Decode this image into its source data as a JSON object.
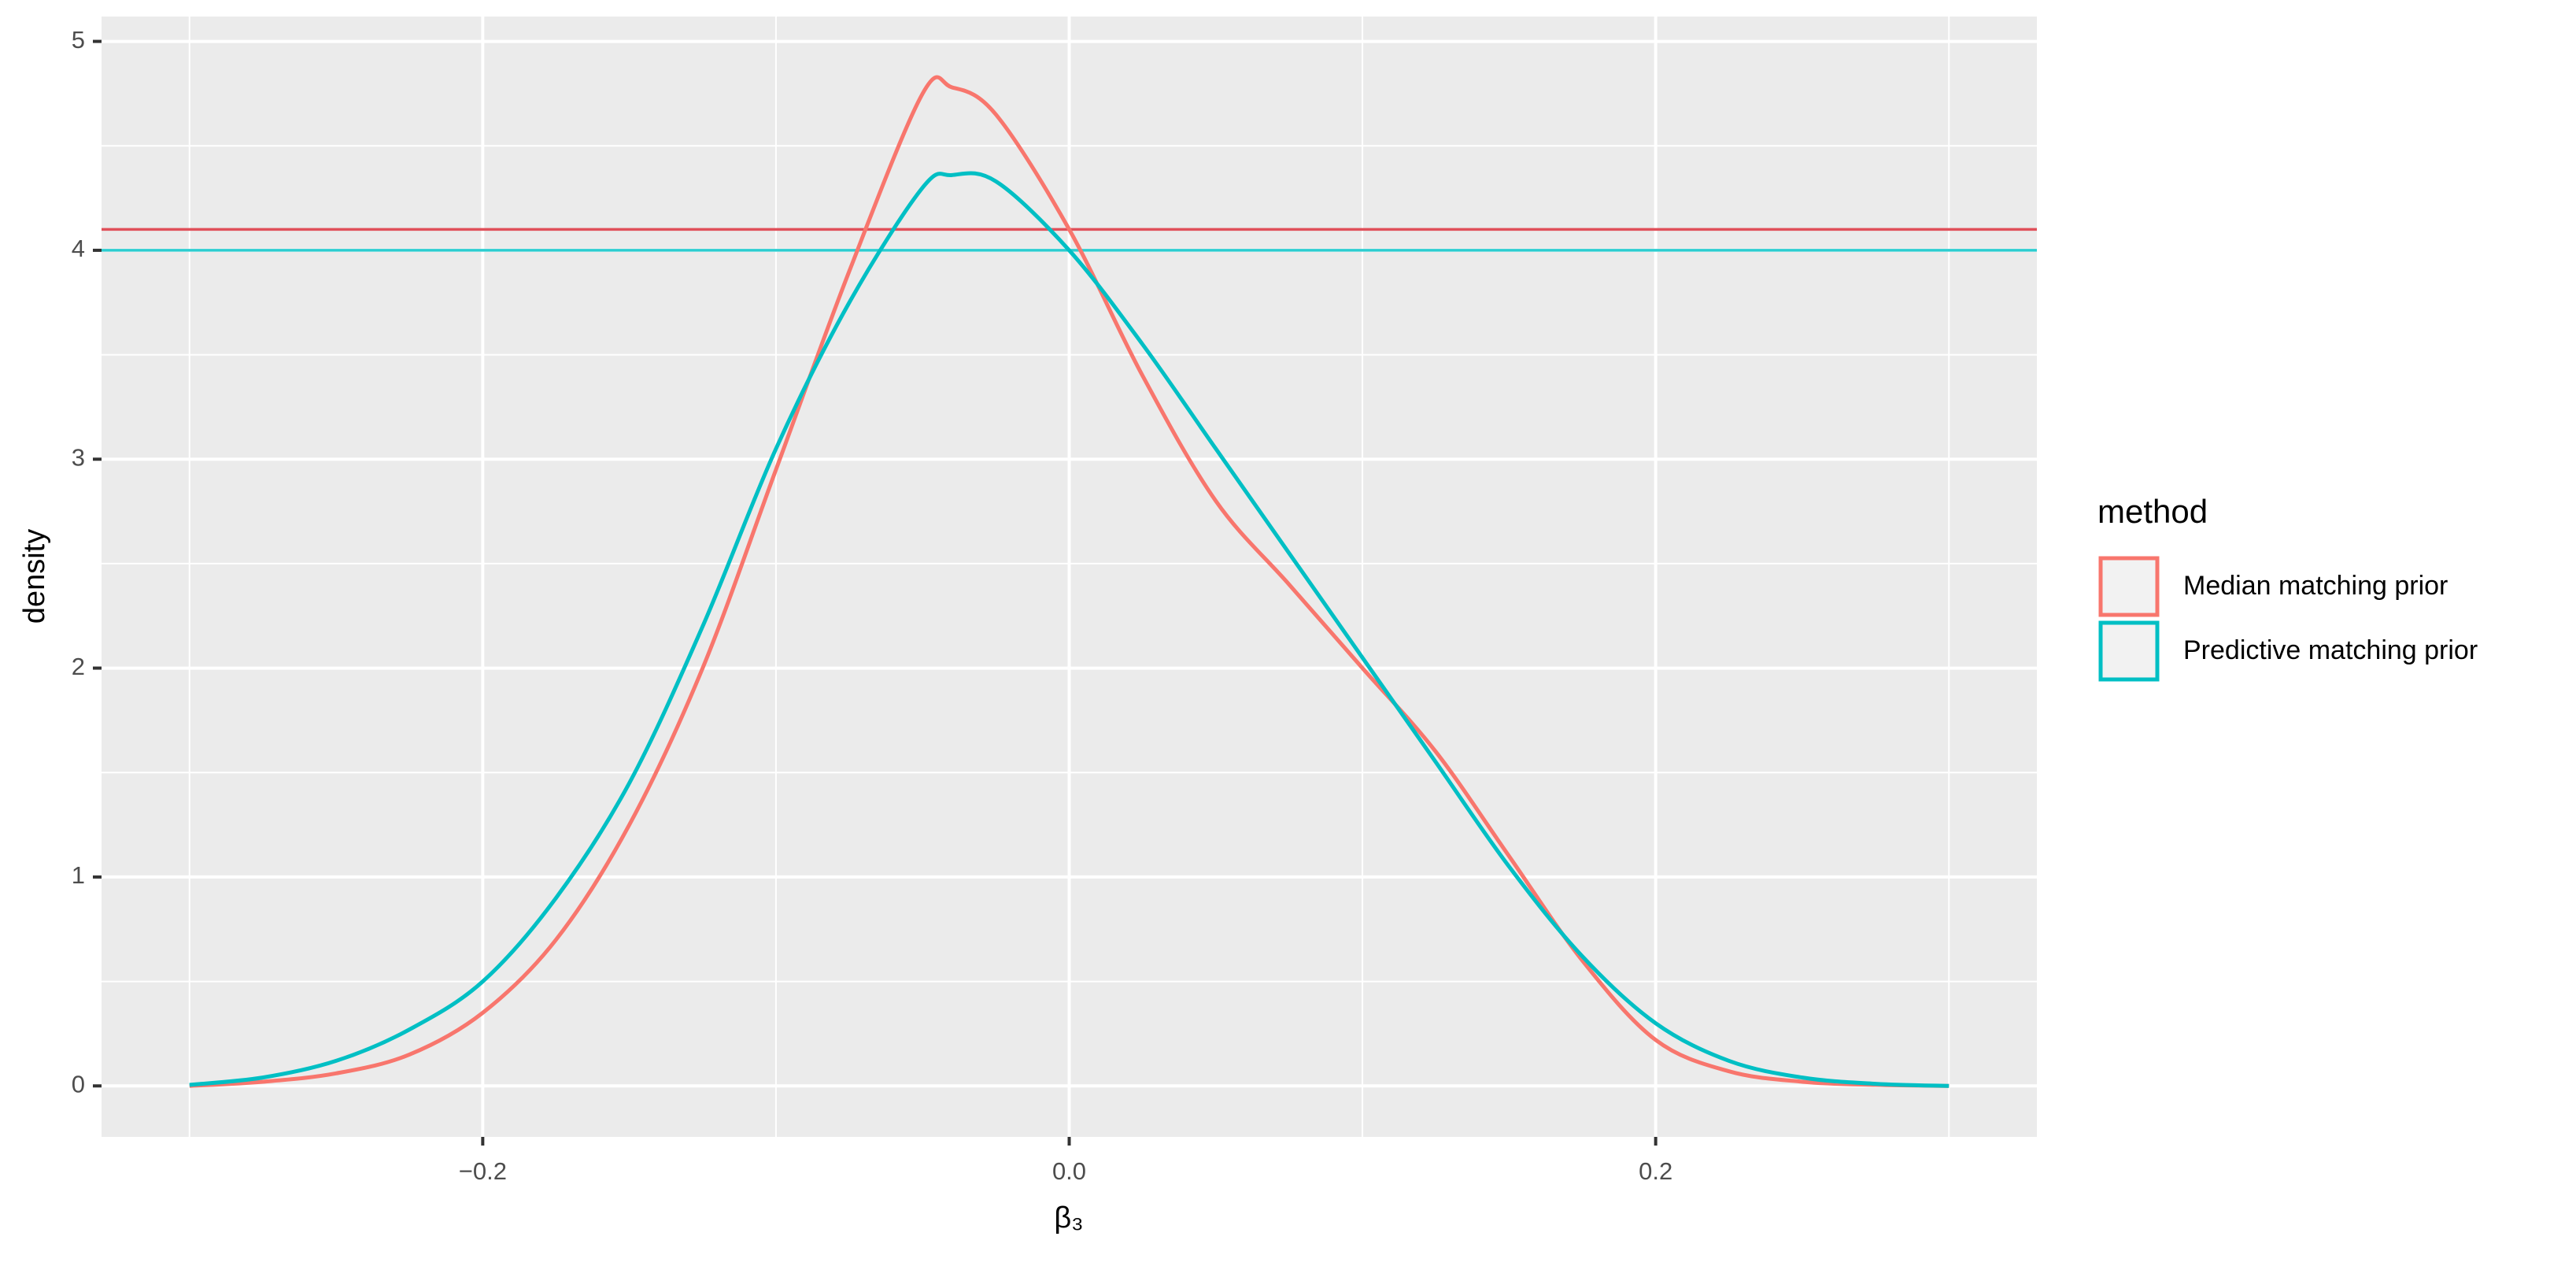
{
  "chart_data": {
    "type": "line",
    "xlabel": "β₃",
    "ylabel": "density",
    "legend_title": "method",
    "legend_position": "right",
    "x": [
      -0.3,
      -0.275,
      -0.25,
      -0.225,
      -0.2,
      -0.175,
      -0.15,
      -0.125,
      -0.1,
      -0.075,
      -0.05,
      -0.04,
      -0.025,
      0,
      0.025,
      0.05,
      0.075,
      0.1,
      0.125,
      0.15,
      0.175,
      0.2,
      0.225,
      0.25,
      0.275,
      0.3
    ],
    "series": [
      {
        "name": "Median matching prior",
        "color": "#F8766D",
        "values": [
          0,
          0.02,
          0.06,
          0.15,
          0.35,
          0.7,
          1.25,
          2.0,
          2.95,
          3.9,
          4.75,
          4.78,
          4.65,
          4.1,
          3.4,
          2.8,
          2.4,
          2.0,
          1.6,
          1.1,
          0.6,
          0.22,
          0.07,
          0.02,
          0.005,
          0
        ]
      },
      {
        "name": "Predictive matching prior",
        "color": "#00BFC4",
        "values": [
          0.005,
          0.04,
          0.12,
          0.27,
          0.5,
          0.9,
          1.45,
          2.2,
          3.05,
          3.75,
          4.3,
          4.36,
          4.33,
          4.0,
          3.55,
          3.05,
          2.55,
          2.05,
          1.55,
          1.05,
          0.62,
          0.3,
          0.12,
          0.04,
          0.01,
          0
        ]
      }
    ],
    "hlines": [
      {
        "value": 4.1,
        "color": "#E0505A"
      },
      {
        "value": 4.0,
        "color": "#2CCDD0"
      }
    ],
    "xlim": [
      -0.33,
      0.33
    ],
    "ylim": [
      -0.244,
      5.119
    ],
    "xticks": [
      {
        "value": -0.2,
        "label": "−0.2"
      },
      {
        "value": 0,
        "label": "0.0"
      },
      {
        "value": 0.2,
        "label": "0.2"
      }
    ],
    "yticks": [
      0,
      1,
      2,
      3,
      4,
      5
    ],
    "xminor_ticks": [
      -0.3,
      -0.1,
      0.1,
      0.3
    ],
    "yminor_ticks": [
      0.5,
      1.5,
      2.5,
      3.5,
      4.5
    ],
    "grid": true
  }
}
